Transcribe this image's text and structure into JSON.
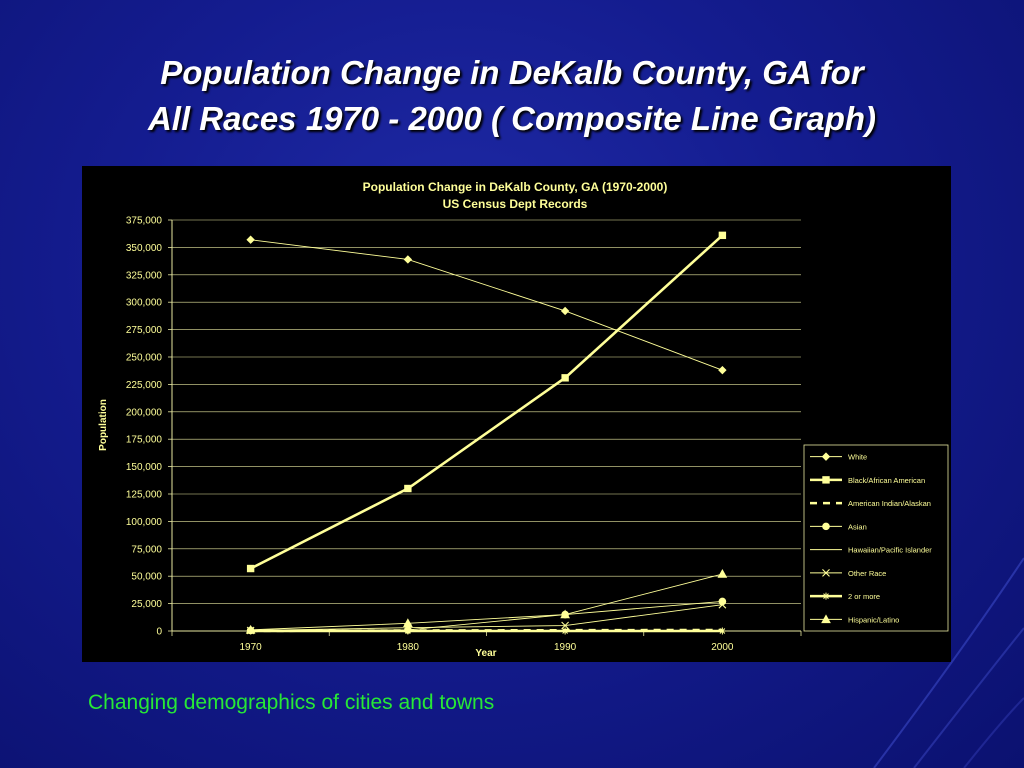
{
  "slide": {
    "title_line1": "Population Change in DeKalb County, GA  for",
    "title_line2": "All Races 1970 - 2000  ( Composite Line Graph)",
    "caption": "Changing demographics of cities and towns"
  },
  "chart_data": {
    "type": "line",
    "title": "Population Change in DeKalb County, GA (1970-2000)",
    "subtitle": "US Census Dept Records",
    "xlabel": "Year",
    "ylabel": "Population",
    "categories": [
      "1970",
      "1980",
      "1990",
      "2000"
    ],
    "ylim": [
      0,
      375000
    ],
    "ytick_step": 25000,
    "grid": true,
    "legend_position": "right",
    "series": [
      {
        "name": "White",
        "values": [
          357000,
          339000,
          292000,
          238000
        ],
        "color": "#ffff99",
        "marker": "diamond",
        "line": "thin"
      },
      {
        "name": "Black/African American",
        "values": [
          57000,
          130000,
          231000,
          361000
        ],
        "color": "#ffff99",
        "marker": "square",
        "line": "thick"
      },
      {
        "name": "American Indian/Alaskan",
        "values": [
          0,
          500,
          800,
          1000
        ],
        "color": "#ffff99",
        "marker": "none",
        "line": "dashed"
      },
      {
        "name": "Asian",
        "values": [
          500,
          1000,
          15000,
          27000
        ],
        "color": "#ffff99",
        "marker": "circle",
        "line": "thin"
      },
      {
        "name": "Hawaiian/Pacific Islander",
        "values": [
          0,
          0,
          0,
          500
        ],
        "color": "#ffff99",
        "marker": "none",
        "line": "thin"
      },
      {
        "name": "Other Race",
        "values": [
          500,
          3000,
          5000,
          24000
        ],
        "color": "#ffff99",
        "marker": "x",
        "line": "thin"
      },
      {
        "name": "2 or more",
        "values": [
          0,
          0,
          0,
          0
        ],
        "color": "#ffff99",
        "marker": "star",
        "line": "thick"
      },
      {
        "name": "Hispanic/Latino",
        "values": [
          1000,
          7000,
          15000,
          52000
        ],
        "color": "#ffff99",
        "marker": "triangle",
        "line": "thin"
      }
    ]
  }
}
